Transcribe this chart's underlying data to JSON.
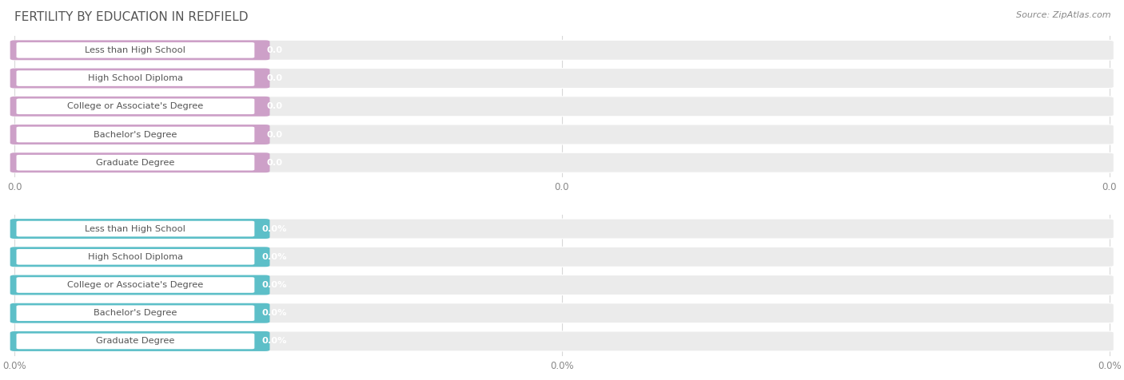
{
  "title": "FERTILITY BY EDUCATION IN REDFIELD",
  "source_text": "Source: ZipAtlas.com",
  "categories": [
    "Less than High School",
    "High School Diploma",
    "College or Associate's Degree",
    "Bachelor's Degree",
    "Graduate Degree"
  ],
  "values_top": [
    0.0,
    0.0,
    0.0,
    0.0,
    0.0
  ],
  "values_bottom": [
    0.0,
    0.0,
    0.0,
    0.0,
    0.0
  ],
  "bar_color_top": "#cda0c8",
  "bar_color_bottom": "#5dbfc8",
  "bg_bar_color": "#ebebeb",
  "title_color": "#555555",
  "source_color": "#888888",
  "tick_color": "#aaaaaa",
  "x_tick_labels_top": [
    "0.0",
    "0.0",
    "0.0"
  ],
  "x_tick_labels_bottom": [
    "0.0%",
    "0.0%",
    "0.0%"
  ],
  "figsize": [
    14.06,
    4.76
  ],
  "dpi": 100
}
